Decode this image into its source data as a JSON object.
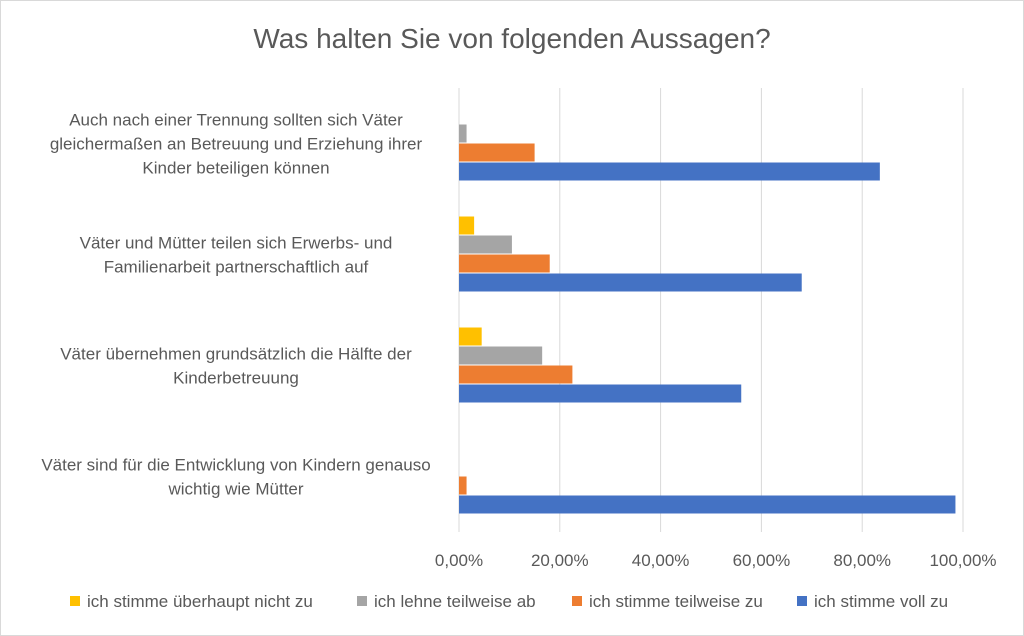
{
  "chart_data": {
    "type": "bar",
    "orientation": "horizontal",
    "title": "Was halten Sie von folgenden Aussagen?",
    "categories": [
      [
        "Auch nach einer Trennung sollten sich Väter",
        "gleichermaßen an Betreuung und Erziehung ihrer",
        "Kinder beteiligen können"
      ],
      [
        "Väter und Mütter teilen sich Erwerbs- und",
        "Familienarbeit partnerschaftlich auf"
      ],
      [
        "Väter übernehmen grundsätzlich die Hälfte der",
        "Kinderbetreuung"
      ],
      [
        "Väter sind für die Entwicklung von Kindern genauso",
        "wichtig wie Mütter"
      ]
    ],
    "series": [
      {
        "name": "ich stimme überhaupt nicht zu",
        "color": "#ffc000",
        "values": [
          0,
          3,
          4.5,
          0
        ]
      },
      {
        "name": "ich lehne teilweise ab",
        "color": "#a5a5a5",
        "values": [
          1.5,
          10.5,
          16.5,
          0
        ]
      },
      {
        "name": "ich stimme teilweise zu",
        "color": "#ed7d31",
        "values": [
          15,
          18,
          22.5,
          1.5
        ]
      },
      {
        "name": "ich stimme voll zu",
        "color": "#4472c4",
        "values": [
          83.5,
          68,
          56,
          98.5
        ]
      }
    ],
    "xlim": [
      0,
      100
    ],
    "xticks": [
      "0,00%",
      "20,00%",
      "40,00%",
      "60,00%",
      "80,00%",
      "100,00%"
    ],
    "grid": true,
    "legend": "bottom"
  }
}
